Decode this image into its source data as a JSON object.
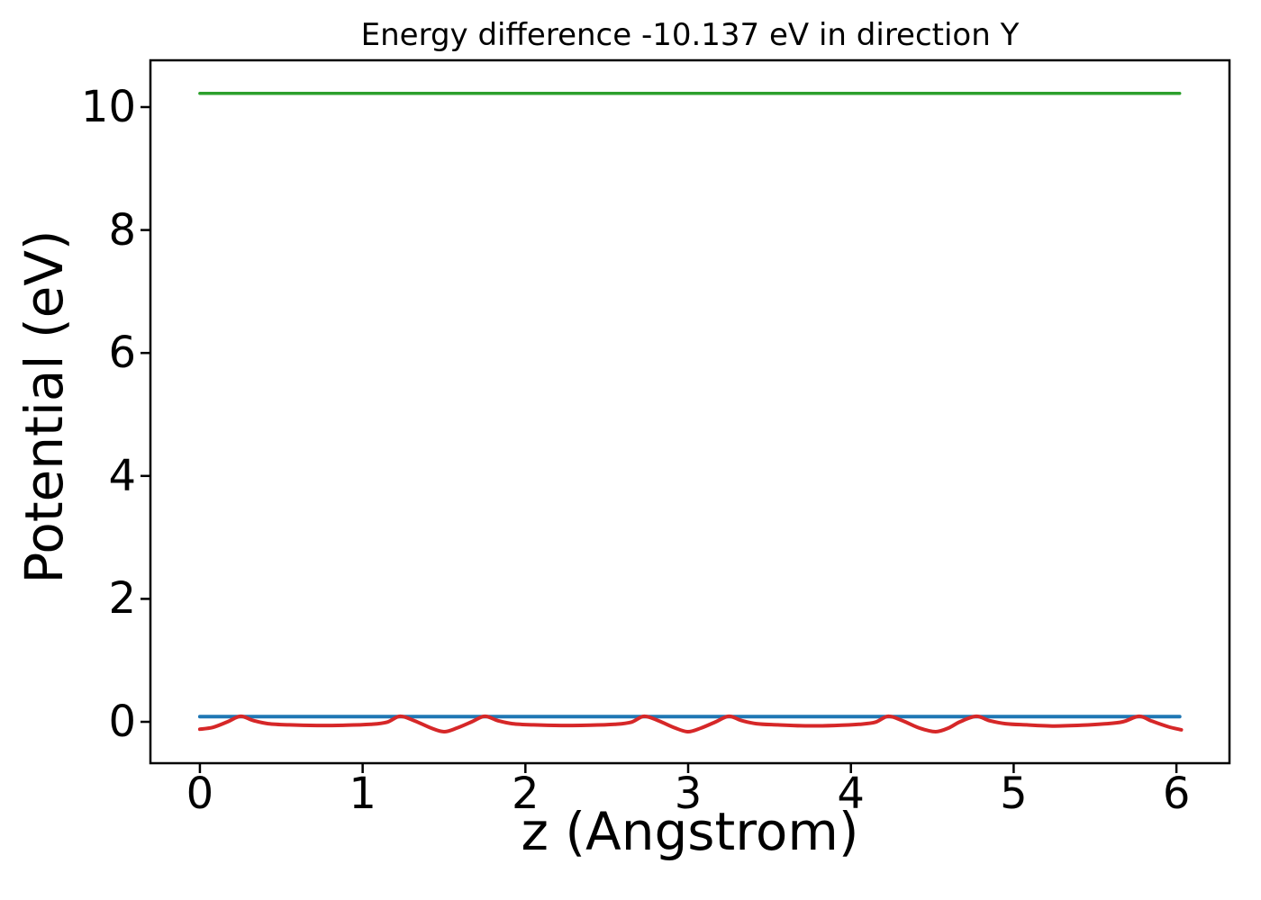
{
  "figure": {
    "background": "#ffffff",
    "text_color": "#000000"
  },
  "chart_data": {
    "type": "line",
    "title": "Energy difference -10.137 eV in direction Y",
    "xlabel": "z (Angstrom)",
    "ylabel": "Potential (eV)",
    "xlim": [
      -0.304,
      6.326
    ],
    "ylim": [
      -0.673,
      10.761
    ],
    "xticks": [
      0,
      1,
      2,
      3,
      4,
      5,
      6
    ],
    "yticks": [
      0,
      2,
      4,
      6,
      8,
      10
    ],
    "grid": false,
    "legend": null,
    "axis_color": "#000000",
    "energy_difference_ev": -10.137,
    "direction": "Y",
    "series": [
      {
        "name": "vacuum-level-line",
        "color": "#2ca02c",
        "width": 3.5,
        "smooth": false,
        "x": [
          0.0,
          6.02
        ],
        "y": [
          10.222,
          10.222
        ]
      },
      {
        "name": "average-potential-line",
        "color": "#1f77b4",
        "width": 4,
        "smooth": false,
        "x": [
          0.0,
          6.02
        ],
        "y": [
          0.085,
          0.085
        ]
      },
      {
        "name": "planar-potential-curve",
        "color": "#d62728",
        "width": 4,
        "smooth": true,
        "x": [
          0.0,
          0.08,
          0.17,
          0.25,
          0.33,
          0.42,
          0.55,
          0.72,
          0.9,
          1.05,
          1.15,
          1.23,
          1.32,
          1.42,
          1.5,
          1.58,
          1.67,
          1.75,
          1.83,
          1.92,
          2.05,
          2.22,
          2.4,
          2.55,
          2.65,
          2.73,
          2.82,
          2.92,
          3.0,
          3.08,
          3.17,
          3.25,
          3.33,
          3.42,
          3.55,
          3.72,
          3.9,
          4.05,
          4.15,
          4.23,
          4.32,
          4.42,
          4.52,
          4.6,
          4.67,
          4.77,
          4.85,
          4.95,
          5.08,
          5.25,
          5.42,
          5.55,
          5.67,
          5.77,
          5.85,
          5.95,
          6.03
        ],
        "y": [
          -0.12,
          -0.09,
          0.0,
          0.09,
          0.02,
          -0.03,
          -0.05,
          -0.06,
          -0.055,
          -0.04,
          -0.005,
          0.09,
          0.015,
          -0.1,
          -0.16,
          -0.1,
          0.0,
          0.09,
          0.02,
          -0.03,
          -0.05,
          -0.06,
          -0.055,
          -0.04,
          -0.005,
          0.09,
          0.015,
          -0.1,
          -0.16,
          -0.1,
          0.0,
          0.09,
          0.02,
          -0.03,
          -0.05,
          -0.065,
          -0.06,
          -0.04,
          -0.005,
          0.09,
          0.015,
          -0.1,
          -0.16,
          -0.1,
          0.0,
          0.09,
          0.02,
          -0.03,
          -0.05,
          -0.068,
          -0.055,
          -0.035,
          0.0,
          0.09,
          0.01,
          -0.08,
          -0.13
        ]
      }
    ]
  }
}
